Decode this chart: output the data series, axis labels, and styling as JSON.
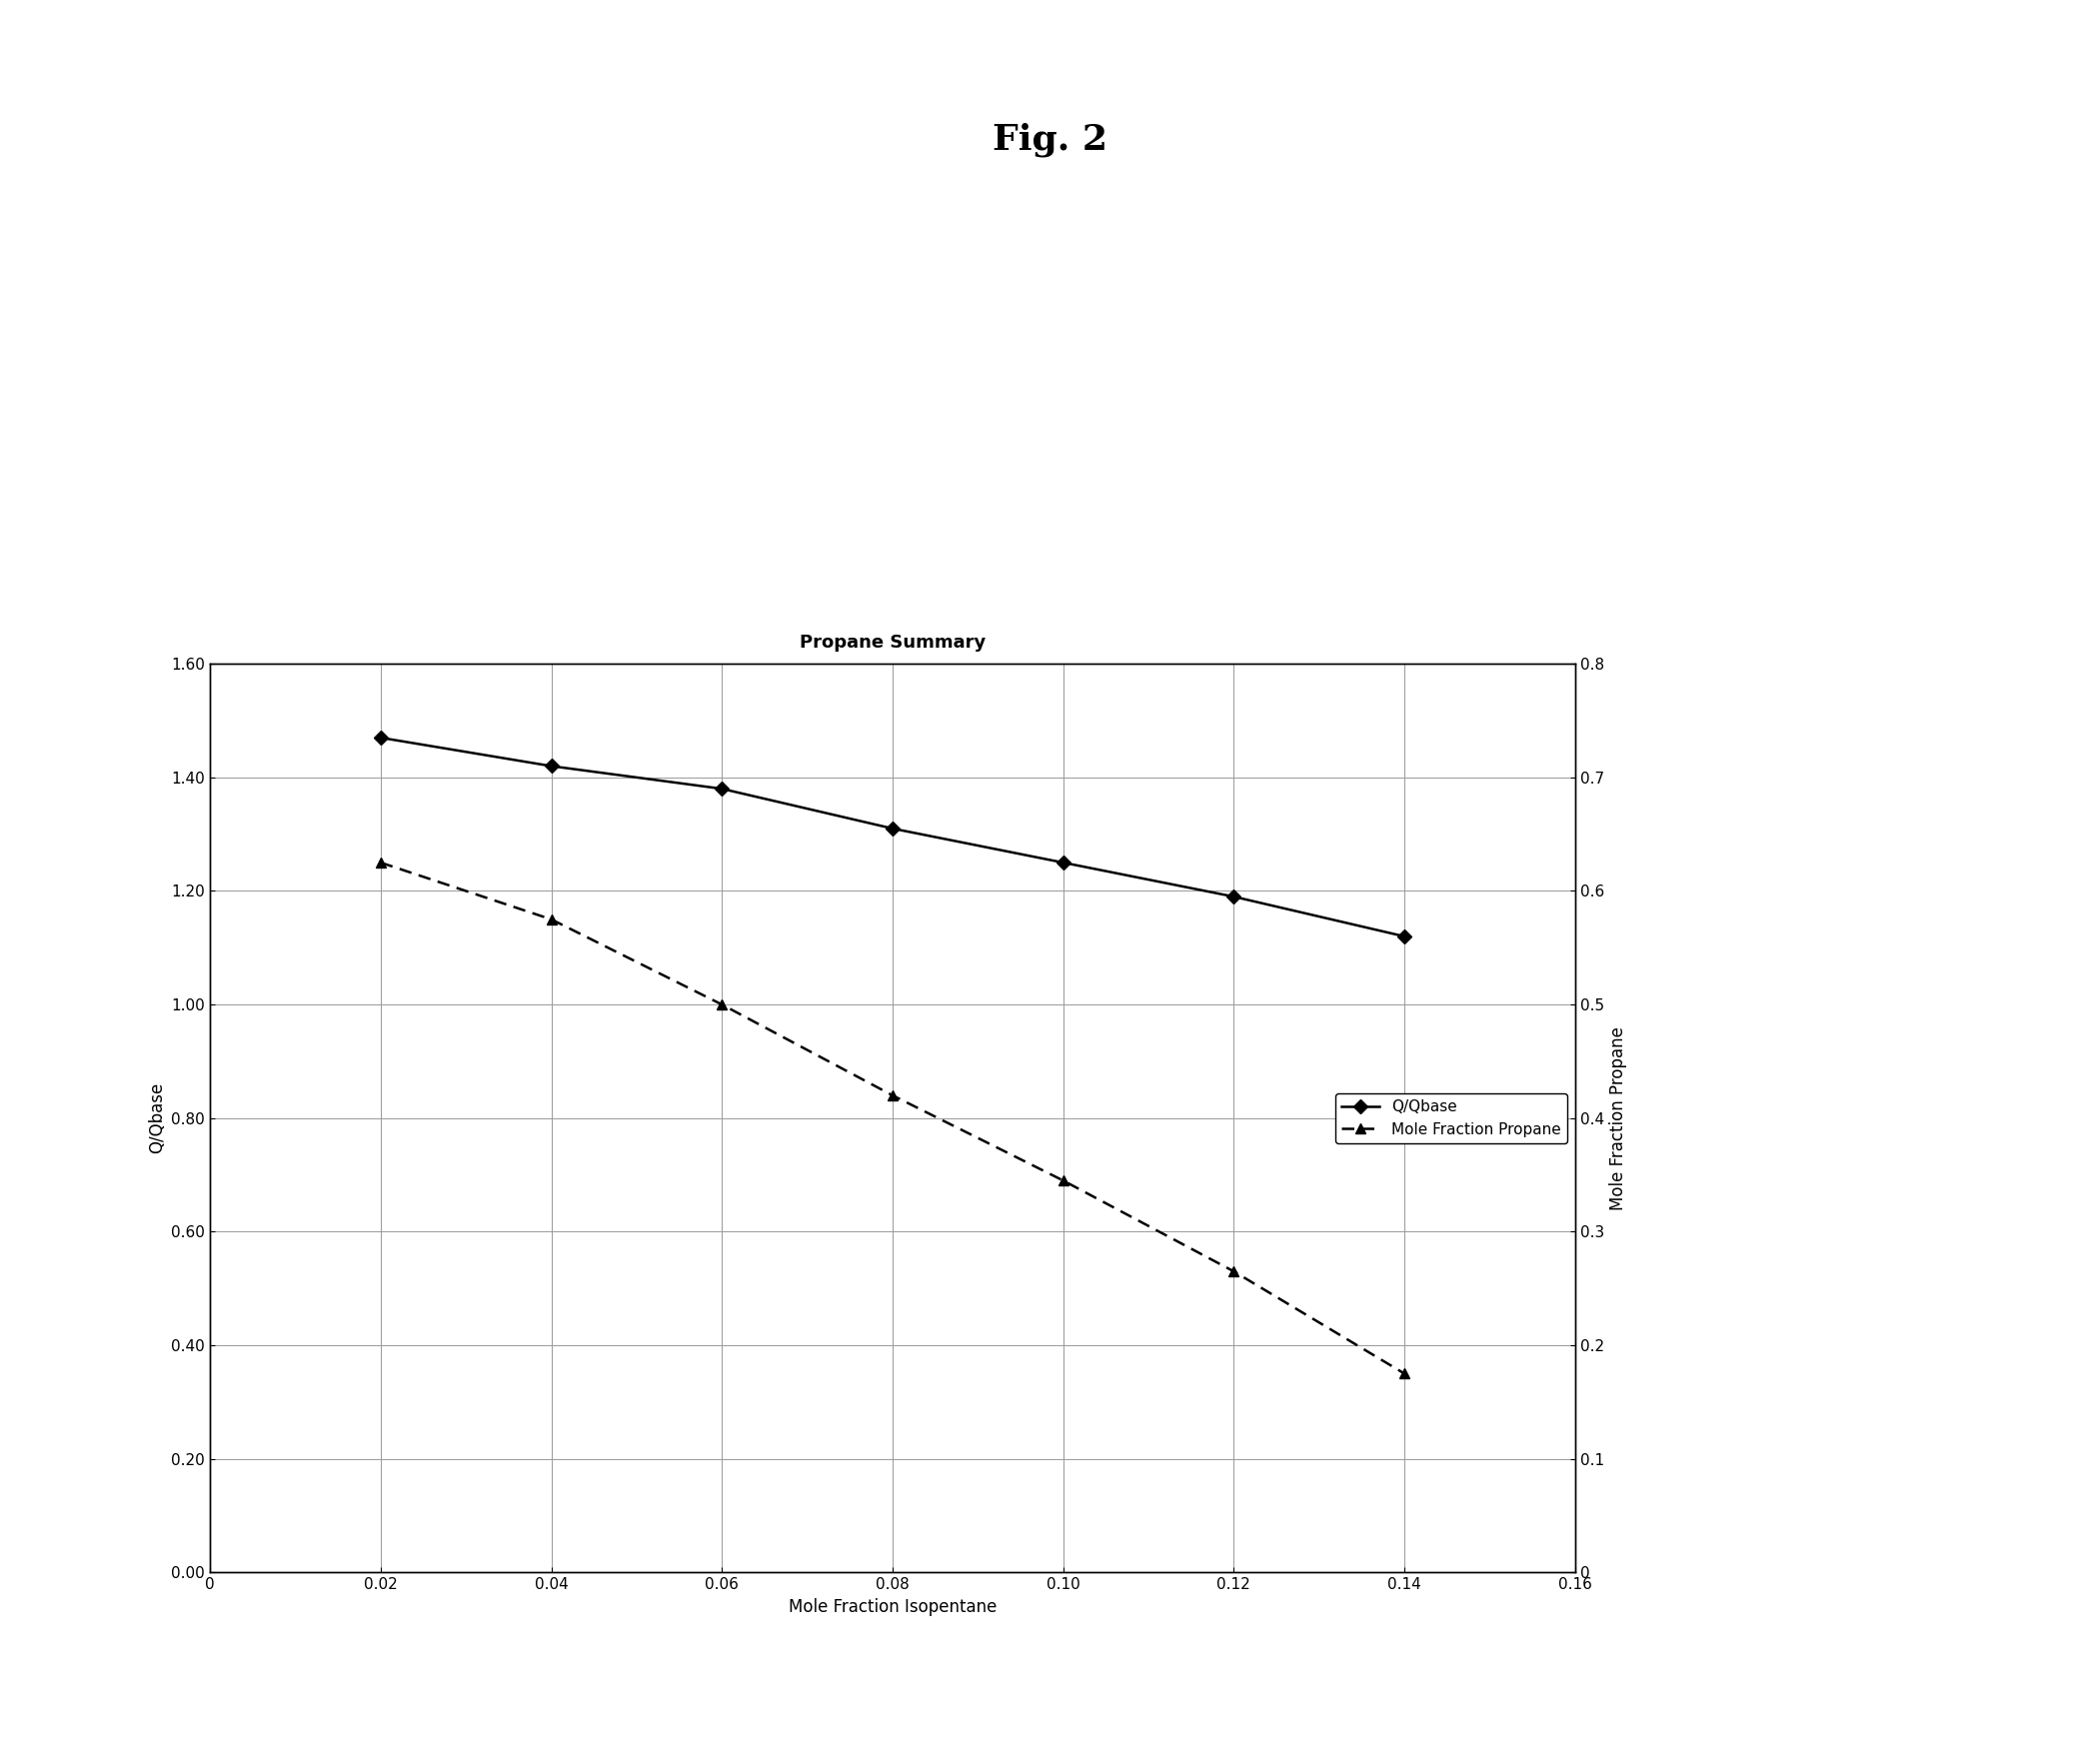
{
  "title_fig": "Fig. 2",
  "title_chart": "Propane Summary",
  "xlabel": "Mole Fraction Isopentane",
  "ylabel_left": "Q/Qbase",
  "ylabel_right": "Mole Fraction Propane",
  "xlim": [
    0,
    0.16
  ],
  "ylim_left": [
    0.0,
    1.6
  ],
  "ylim_right": [
    0,
    0.8
  ],
  "xticks": [
    0,
    0.02,
    0.04,
    0.06,
    0.08,
    0.1,
    0.12,
    0.14,
    0.16
  ],
  "yticks_left": [
    0.0,
    0.2,
    0.4,
    0.6,
    0.8,
    1.0,
    1.2,
    1.4,
    1.6
  ],
  "yticks_right": [
    0,
    0.1,
    0.2,
    0.3,
    0.4,
    0.5,
    0.6,
    0.7,
    0.8
  ],
  "series1_label": "Q/Qbase",
  "series1_x": [
    0.02,
    0.04,
    0.06,
    0.08,
    0.1,
    0.12,
    0.14
  ],
  "series1_y": [
    1.47,
    1.42,
    1.38,
    1.31,
    1.25,
    1.19,
    1.12
  ],
  "series1_color": "#000000",
  "series1_linestyle": "solid",
  "series1_marker": "D",
  "series1_markersize": 7,
  "series2_label": "Mole Fraction Propane",
  "series2_x": [
    0.02,
    0.04,
    0.06,
    0.08,
    0.1,
    0.12,
    0.14
  ],
  "series2_y": [
    0.625,
    0.575,
    0.5,
    0.42,
    0.345,
    0.265,
    0.175
  ],
  "series2_color": "#000000",
  "series2_linestyle": "dashed",
  "series2_marker": "^",
  "series2_markersize": 7,
  "background_color": "#ffffff",
  "grid_color": "#999999",
  "fig_title_fontsize": 26,
  "chart_title_fontsize": 13,
  "axis_label_fontsize": 12,
  "tick_fontsize": 11,
  "legend_fontsize": 11
}
